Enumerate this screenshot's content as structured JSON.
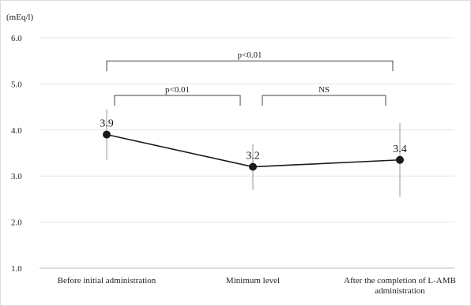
{
  "chart_data": {
    "type": "line",
    "ylabel": "(mEq/l)",
    "ylim": [
      1.0,
      6.0
    ],
    "yticks": [
      "1.0",
      "2.0",
      "3.0",
      "4.0",
      "5.0",
      "6.0"
    ],
    "grid": true,
    "categories": [
      [
        "Before initial administration"
      ],
      [
        "Minimum level"
      ],
      [
        "After the completion of L-AMB",
        "administration"
      ]
    ],
    "series": [
      {
        "values": [
          3.9,
          3.2,
          3.35
        ],
        "value_labels": [
          "3.9",
          "3.2",
          "3.4"
        ],
        "error_low": [
          3.35,
          2.7,
          2.55
        ],
        "error_high": [
          4.45,
          3.7,
          4.15
        ],
        "color": "#1a1a1a"
      }
    ],
    "annotations": [
      {
        "from": 0,
        "to": 2,
        "y": 5.5,
        "label": "p<0.01"
      },
      {
        "from": 0,
        "to": 1,
        "y": 4.75,
        "label": "p<0.01"
      },
      {
        "from": 1,
        "to": 2,
        "y": 4.75,
        "label": "NS"
      }
    ]
  }
}
